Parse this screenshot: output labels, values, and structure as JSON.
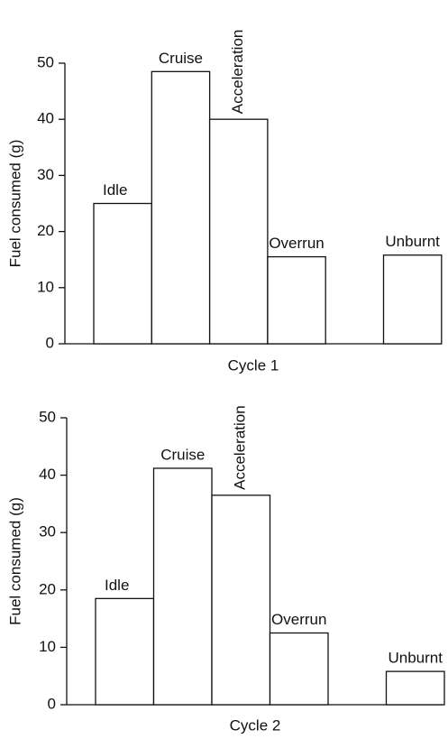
{
  "chart_data": [
    {
      "type": "bar",
      "xlabel": "Cycle 1",
      "ylabel": "Fuel consumed (g)",
      "categories": [
        "Idle",
        "Cruise",
        "Acceleration",
        "Overrun",
        "Unburnt"
      ],
      "values": [
        25,
        48.5,
        40,
        15.5,
        15.8
      ],
      "color": "#ffffff",
      "ylim": [
        0,
        50
      ],
      "yticks": [
        0,
        10,
        20,
        30,
        40,
        50
      ]
    },
    {
      "type": "bar",
      "xlabel": "Cycle 2",
      "ylabel": "Fuel consumed (g)",
      "categories": [
        "Idle",
        "Cruise",
        "Acceleration",
        "Overrun",
        "Unburnt"
      ],
      "values": [
        18.5,
        41.2,
        36.5,
        12.5,
        5.8
      ],
      "color": "#ffffff",
      "ylim": [
        0,
        50
      ],
      "yticks": [
        0,
        10,
        20,
        30,
        40,
        50
      ]
    }
  ]
}
